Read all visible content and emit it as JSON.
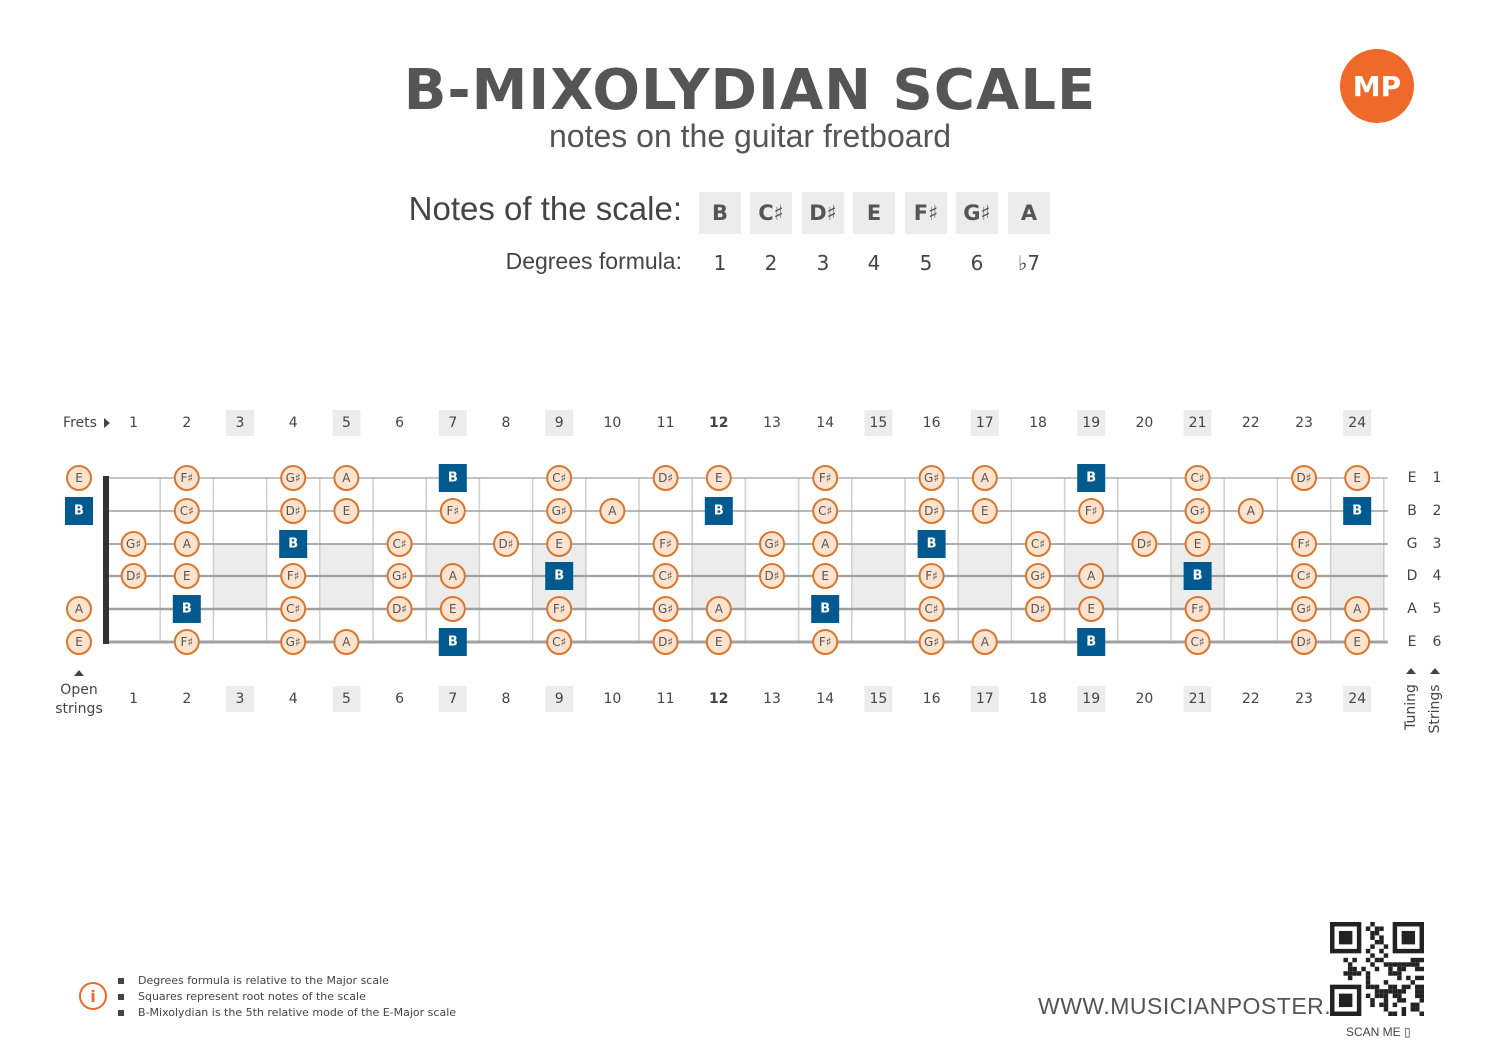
{
  "header": {
    "title": "B-MIXOLYDIAN SCALE",
    "subtitle": "notes on the guitar fretboard",
    "logo_text": "MP"
  },
  "scale": {
    "notes_label": "Notes of the scale:",
    "degrees_label": "Degrees formula:",
    "notes": [
      "B",
      "C♯",
      "D♯",
      "E",
      "F♯",
      "G♯",
      "A"
    ],
    "degrees": [
      "1",
      "2",
      "3",
      "4",
      "5",
      "6",
      "♭7"
    ]
  },
  "fretboard": {
    "frets_label": "Frets",
    "fret_numbers": [
      "1",
      "2",
      "3",
      "4",
      "5",
      "6",
      "7",
      "8",
      "9",
      "10",
      "11",
      "12",
      "13",
      "14",
      "15",
      "16",
      "17",
      "18",
      "19",
      "20",
      "21",
      "22",
      "23",
      "24"
    ],
    "marked_frets": [
      3,
      5,
      7,
      9,
      12,
      15,
      17,
      19,
      21,
      24
    ],
    "open_strings_label": [
      "Open",
      "strings"
    ],
    "tuning_label": "Tuning",
    "strings_label": "Strings",
    "root_note": "B",
    "strings": [
      {
        "tuning": "E",
        "number": "1",
        "notes": [
          "E",
          "",
          "F♯",
          "",
          "G♯",
          "A",
          "",
          "B",
          "",
          "C♯",
          "",
          "D♯",
          "E",
          "",
          "F♯",
          "",
          "G♯",
          "A",
          "",
          "B",
          "",
          "C♯",
          "",
          "D♯",
          "E"
        ]
      },
      {
        "tuning": "B",
        "number": "2",
        "notes": [
          "B",
          "",
          "C♯",
          "",
          "D♯",
          "E",
          "",
          "F♯",
          "",
          "G♯",
          "A",
          "",
          "B",
          "",
          "C♯",
          "",
          "D♯",
          "E",
          "",
          "F♯",
          "",
          "G♯",
          "A",
          "",
          "B"
        ]
      },
      {
        "tuning": "G",
        "number": "3",
        "notes": [
          "",
          "G♯",
          "A",
          "",
          "B",
          "",
          "C♯",
          "",
          "D♯",
          "E",
          "",
          "F♯",
          "",
          "G♯",
          "A",
          "",
          "B",
          "",
          "C♯",
          "",
          "D♯",
          "E",
          "",
          "F♯",
          ""
        ]
      },
      {
        "tuning": "D",
        "number": "4",
        "notes": [
          "",
          "D♯",
          "E",
          "",
          "F♯",
          "",
          "G♯",
          "A",
          "",
          "B",
          "",
          "C♯",
          "",
          "D♯",
          "E",
          "",
          "F♯",
          "",
          "G♯",
          "A",
          "",
          "B",
          "",
          "C♯",
          ""
        ]
      },
      {
        "tuning": "A",
        "number": "5",
        "notes": [
          "A",
          "",
          "B",
          "",
          "C♯",
          "",
          "D♯",
          "E",
          "",
          "F♯",
          "",
          "G♯",
          "A",
          "",
          "B",
          "",
          "C♯",
          "",
          "D♯",
          "E",
          "",
          "F♯",
          "",
          "G♯",
          "A"
        ]
      },
      {
        "tuning": "E",
        "number": "6",
        "notes": [
          "E",
          "",
          "F♯",
          "",
          "G♯",
          "A",
          "",
          "B",
          "",
          "C♯",
          "",
          "D♯",
          "E",
          "",
          "F♯",
          "",
          "G♯",
          "A",
          "",
          "B",
          "",
          "C♯",
          "",
          "D♯",
          "E"
        ]
      }
    ]
  },
  "footer": {
    "notes": [
      "Degrees formula is relative to the Major scale",
      "Squares represent root notes of the scale",
      "B-Mixolydian is the 5th relative mode of the E-Major scale"
    ],
    "website": "WWW.MUSICIANPOSTER.COM",
    "scan_label": "SCAN ME"
  },
  "colors": {
    "accent_orange": "#d9772f",
    "note_fill": "#fbe3cf",
    "root_blue": "#005a8f",
    "fret_highlight": "#ececec"
  }
}
